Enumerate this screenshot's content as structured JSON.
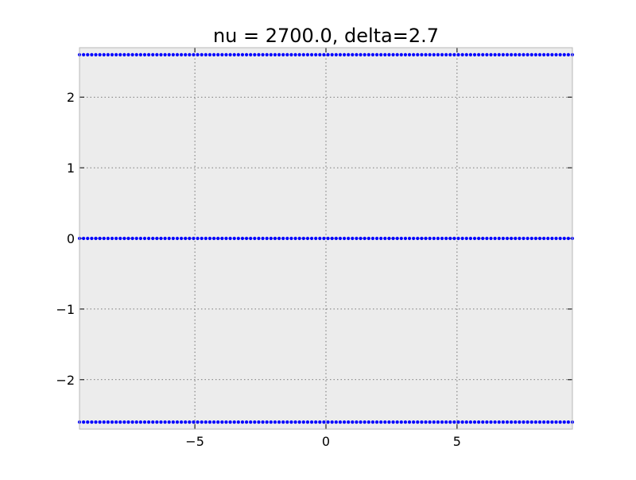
{
  "chart_data": {
    "type": "scatter",
    "title": "nu = 2700.0, delta=2.7",
    "xlabel": "",
    "ylabel": "",
    "xlim": [
      -9.4,
      9.4
    ],
    "ylim": [
      -2.7,
      2.7
    ],
    "x_ticks": [
      {
        "value": -5,
        "label": "−5"
      },
      {
        "value": 0,
        "label": "0"
      },
      {
        "value": 5,
        "label": "5"
      }
    ],
    "y_ticks": [
      {
        "value": 2,
        "label": "2"
      },
      {
        "value": 1,
        "label": "1"
      },
      {
        "value": 0,
        "label": "0"
      },
      {
        "value": -1,
        "label": "−1"
      },
      {
        "value": -2,
        "label": "−2"
      }
    ],
    "grid": true,
    "series": [
      {
        "y": 2.6,
        "x_start": -9.4,
        "x_end": 9.4,
        "n": 122
      },
      {
        "y": 0.0,
        "x_start": -9.4,
        "x_end": 9.4,
        "n": 122
      },
      {
        "y": -2.6,
        "x_start": -9.4,
        "x_end": 9.4,
        "n": 122
      }
    ],
    "colors": {
      "points": "#0000ff",
      "background": "#ececec",
      "frame": "#b8b8b8",
      "grid": "#555555"
    }
  }
}
